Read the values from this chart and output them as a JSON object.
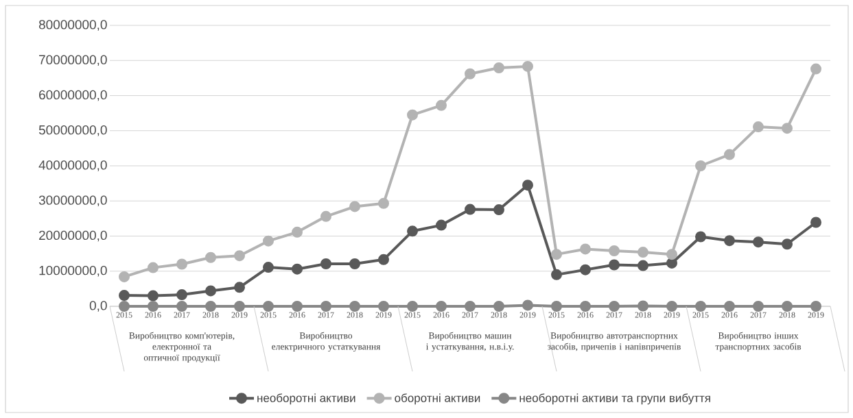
{
  "chart_data": {
    "type": "line",
    "categories": [
      "2015",
      "2016",
      "2017",
      "2018",
      "2019",
      "2015",
      "2016",
      "2017",
      "2018",
      "2019",
      "2015",
      "2016",
      "2017",
      "2018",
      "2019",
      "2015",
      "2016",
      "2017",
      "2018",
      "2019",
      "2015",
      "2016",
      "2017",
      "2018",
      "2019"
    ],
    "annotations": [
      "Виробництво комп'ютерів, електронної та оптичної продукції",
      "Виробництво електричного устаткування",
      "Виробництво машин і устаткування, н.в.і.у.",
      "Виробництво автотранспортних засобів, причепів і напівпричепів",
      "Виробництво інших транспортних засобів"
    ],
    "series": [
      {
        "name": "необоротні активи",
        "color": "#595959",
        "values": [
          3100000,
          3000000,
          3300000,
          4400000,
          5400000,
          11100000,
          10600000,
          12100000,
          12100000,
          13300000,
          21400000,
          23100000,
          27600000,
          27500000,
          34500000,
          9000000,
          10400000,
          11800000,
          11600000,
          12300000,
          19800000,
          18700000,
          18300000,
          17700000,
          23900000
        ]
      },
      {
        "name": "оборотні активи",
        "color": "#b3b3b3",
        "values": [
          8400000,
          11000000,
          12000000,
          13900000,
          14400000,
          18600000,
          21100000,
          25600000,
          28400000,
          29300000,
          54500000,
          57200000,
          66200000,
          67900000,
          68300000,
          14800000,
          16300000,
          15800000,
          15400000,
          14800000,
          40000000,
          43200000,
          51100000,
          50700000,
          67600000
        ]
      },
      {
        "name": "необоротні активи та групи вибуття",
        "color": "#878787",
        "values": [
          0,
          0,
          0,
          0,
          0,
          0,
          0,
          0,
          0,
          0,
          0,
          0,
          0,
          0,
          300000,
          0,
          0,
          0,
          100000,
          0,
          0,
          0,
          0,
          0,
          0
        ]
      }
    ],
    "ylim": [
      0,
      80000000
    ],
    "yticks": [
      {
        "value": 0,
        "label": "0,0"
      },
      {
        "value": 10000000,
        "label": "10000000,0"
      },
      {
        "value": 20000000,
        "label": "20000000,0"
      },
      {
        "value": 30000000,
        "label": "30000000,0"
      },
      {
        "value": 40000000,
        "label": "40000000,0"
      },
      {
        "value": 50000000,
        "label": "50000000,0"
      },
      {
        "value": 60000000,
        "label": "60000000,0"
      },
      {
        "value": 70000000,
        "label": "70000000,0"
      },
      {
        "value": 80000000,
        "label": "80000000,0"
      }
    ],
    "grid": "y",
    "legend": "bottom",
    "marker": "circle",
    "line_style": "solid"
  }
}
